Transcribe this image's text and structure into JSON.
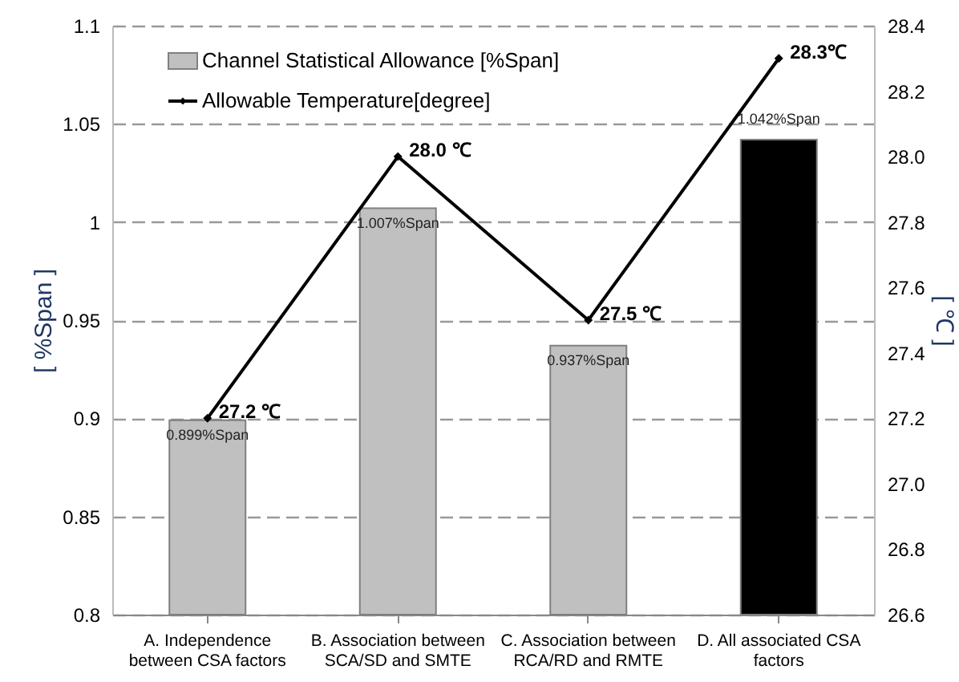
{
  "chart_data": {
    "type": "bar",
    "categories": [
      "A. Independence between CSA factors",
      "B. Association between SCA/SD and SMTE",
      "C. Association between RCA/RD and RMTE",
      "D. All associated CSA factors"
    ],
    "series": [
      {
        "name": "Channel Statistical Allowance [%Span]",
        "color": "#c0c0c0",
        "colors": [
          "#c0c0c0",
          "#c0c0c0",
          "#c0c0c0",
          "#000000"
        ],
        "values": [
          0.899,
          1.007,
          0.937,
          1.042
        ],
        "value_labels": [
          "0.899%Span",
          "1.007%Span",
          "0.937%Span",
          "1.042%Span"
        ]
      },
      {
        "name": "Allowable Temperature[degree]",
        "type": "line",
        "axis": "y2",
        "color": "#000000",
        "values": [
          27.2,
          28.0,
          27.5,
          28.3
        ],
        "value_labels": [
          "27.2 ℃",
          "28.0 ℃",
          "27.5 ℃",
          "28.3℃"
        ]
      }
    ],
    "ylabel": "[ %Span ]",
    "y2label": "[ ℃ ]",
    "ylim": [
      0.8,
      1.1
    ],
    "yticks": [
      0.8,
      0.85,
      0.9,
      0.95,
      1,
      1.05,
      1.1
    ],
    "y2lim": [
      26.6,
      28.4
    ],
    "y2ticks": [
      26.6,
      26.8,
      {
        "value": 27,
        "label": "27.0"
      },
      27.2,
      27.4,
      27.6,
      27.8,
      {
        "value": 28,
        "label": "28.0"
      },
      28.2,
      28.4
    ],
    "grid": "y",
    "legend": "top left",
    "marker": "diamond",
    "line_style": "solid"
  }
}
